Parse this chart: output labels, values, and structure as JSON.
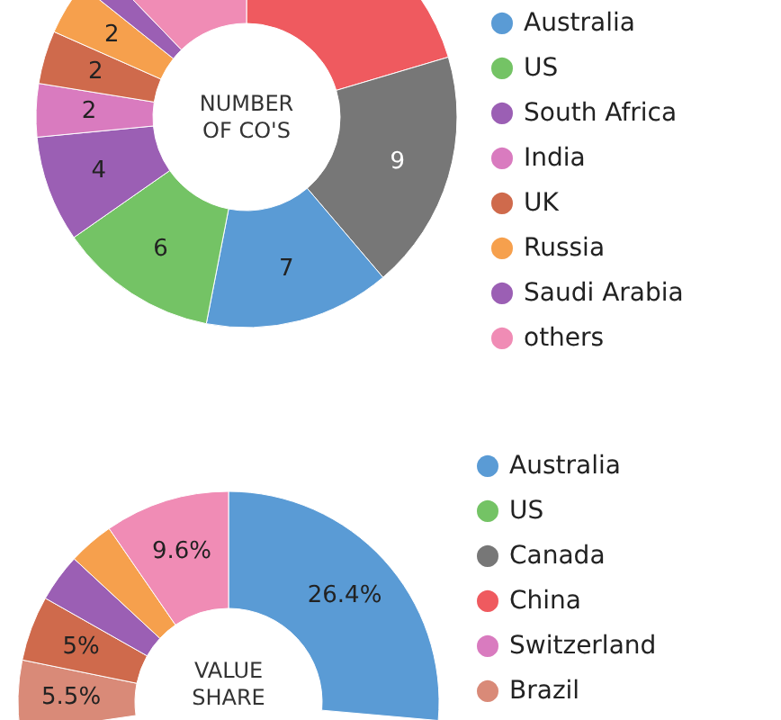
{
  "chart_data": [
    {
      "type": "donut",
      "title": "NUMBER\nOF CO'S",
      "legend": "right",
      "categories": [
        null,
        null,
        "Australia",
        "US",
        "South Africa",
        "India",
        "UK",
        "Russia",
        "Saudi Arabia",
        "others"
      ],
      "values": [
        10,
        9,
        7,
        6,
        4,
        2,
        2,
        2,
        1,
        6
      ],
      "colors": [
        "#ef5a5f",
        "#777777",
        "#5a9bd5",
        "#74c365",
        "#9b5fb4",
        "#d97bbf",
        "#cf6a4c",
        "#f6a04d",
        "#9b5fb4",
        "#f08cb5"
      ],
      "value_labels": [
        null,
        "9",
        "7",
        "6",
        "4",
        "2",
        "2",
        "2",
        null,
        null
      ]
    },
    {
      "type": "donut",
      "title": "VALUE\nSHARE",
      "legend": "right",
      "categories": [
        "Australia",
        "US",
        "Canada",
        "China",
        "Switzerland",
        "Brazil",
        null,
        null,
        null,
        null
      ],
      "values": [
        26.4,
        null,
        null,
        null,
        null,
        5.5,
        5,
        3.7,
        3.5,
        9.6
      ],
      "colors": [
        "#5a9bd5",
        "#74c365",
        "#777777",
        "#ef5a5f",
        "#d97bbf",
        "#d98a78",
        "#cf6a4c",
        "#9b5fb4",
        "#f6a04d",
        "#f08cb5"
      ],
      "value_labels": [
        "26.4%",
        null,
        null,
        null,
        null,
        "5.5%",
        "5%",
        null,
        null,
        "9.6%"
      ]
    }
  ]
}
